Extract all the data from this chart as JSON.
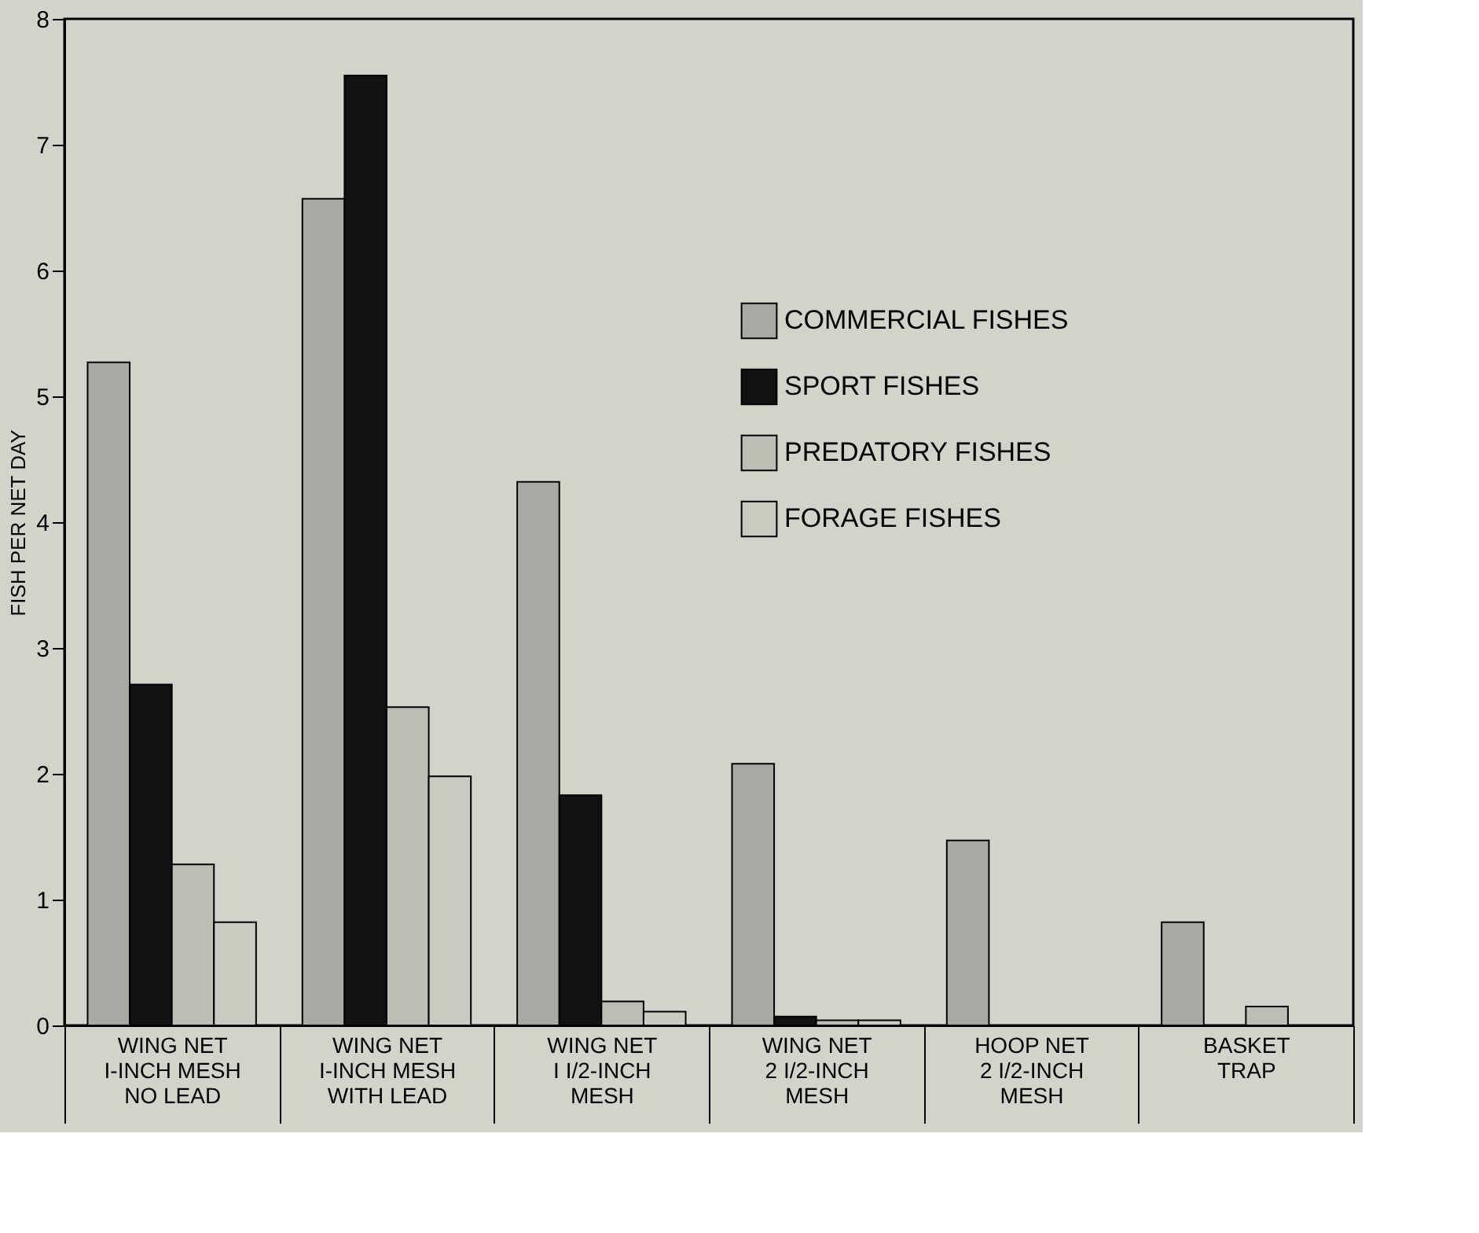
{
  "chart_data": {
    "type": "bar",
    "ylabel": "FISH PER NET DAY",
    "categories": [
      "WING NET\nI-INCH MESH\nNO LEAD",
      "WING NET\nI-INCH MESH\nWITH LEAD",
      "WING NET\nI I/2-INCH\nMESH",
      "WING NET\n2 I/2-INCH\nMESH",
      "HOOP NET\n2 I/2-INCH\nMESH",
      "BASKET\nTRAP"
    ],
    "series": [
      {
        "name": "COMMERCIAL FISHES",
        "color": "#a9a9a3",
        "values": [
          5.27,
          6.57,
          4.32,
          2.08,
          1.47,
          0.82
        ]
      },
      {
        "name": "SPORT FISHES",
        "color": "#111111",
        "values": [
          2.71,
          7.55,
          1.83,
          0.07,
          null,
          null
        ]
      },
      {
        "name": "PREDATORY FISHES",
        "color": "#bdbdb6",
        "values": [
          1.28,
          2.53,
          0.19,
          0.04,
          null,
          0.15
        ]
      },
      {
        "name": "FORAGE FISHES",
        "color": "#cacac3",
        "values": [
          0.82,
          1.98,
          0.11,
          0.04,
          null,
          null
        ]
      }
    ],
    "ylim": [
      0,
      8
    ],
    "yticks": [
      0,
      1,
      2,
      3,
      4,
      5,
      6,
      7,
      8
    ],
    "grid": false,
    "legend": "top right"
  }
}
